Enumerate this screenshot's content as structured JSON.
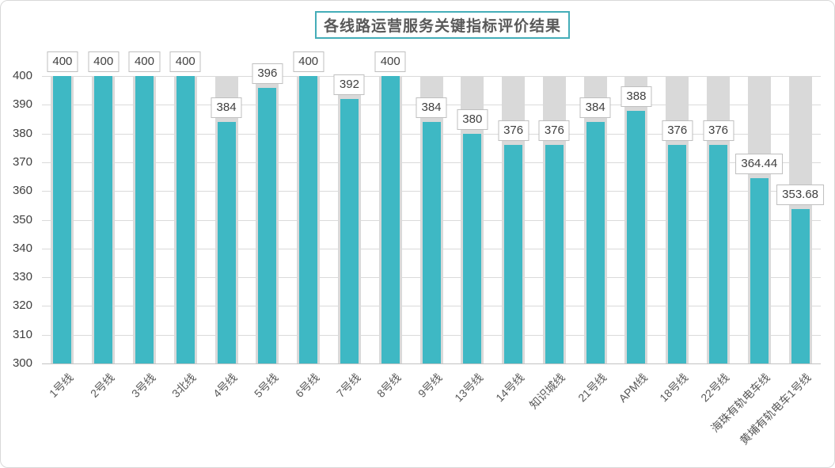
{
  "chart_data": {
    "type": "bar",
    "title": "各线路运营服务关键指标评价结果",
    "categories": [
      "1号线",
      "2号线",
      "3号线",
      "3北线",
      "4号线",
      "5号线",
      "6号线",
      "7号线",
      "8号线",
      "9号线",
      "13号线",
      "14号线",
      "知识城线",
      "21号线",
      "APM线",
      "18号线",
      "22号线",
      "海珠有轨电车线",
      "黄埔有轨电车1号线"
    ],
    "values": [
      400,
      400,
      400,
      400,
      384,
      396,
      400,
      392,
      400,
      384,
      380,
      376,
      376,
      384,
      388,
      376,
      376,
      364.44,
      353.68
    ],
    "data_labels": [
      "400",
      "400",
      "400",
      "400",
      "384",
      "396",
      "400",
      "392",
      "400",
      "384",
      "380",
      "376",
      "376",
      "384",
      "388",
      "376",
      "376",
      "364.44",
      "353.68"
    ],
    "xlabel": "",
    "ylabel": "",
    "ylim": [
      300,
      400
    ],
    "ytick_step": 10,
    "yticks": [
      "300",
      "310",
      "320",
      "330",
      "340",
      "350",
      "360",
      "370",
      "380",
      "390",
      "400"
    ],
    "grid": true,
    "legend_position": "none",
    "bar_background_max": 400,
    "colors": {
      "bar": "#3EB8C4",
      "bar_background": "#D9D9D9",
      "gridline": "#DADADA",
      "axis_line": "#C3C3C3",
      "axis_text": "#404040",
      "category_text": "#595959",
      "data_label_text": "#3F3F3F",
      "data_label_border": "#BFBFBF",
      "title_text": "#595959",
      "title_border": "#44ADB8",
      "frame_border": "#D8D8D8"
    }
  }
}
